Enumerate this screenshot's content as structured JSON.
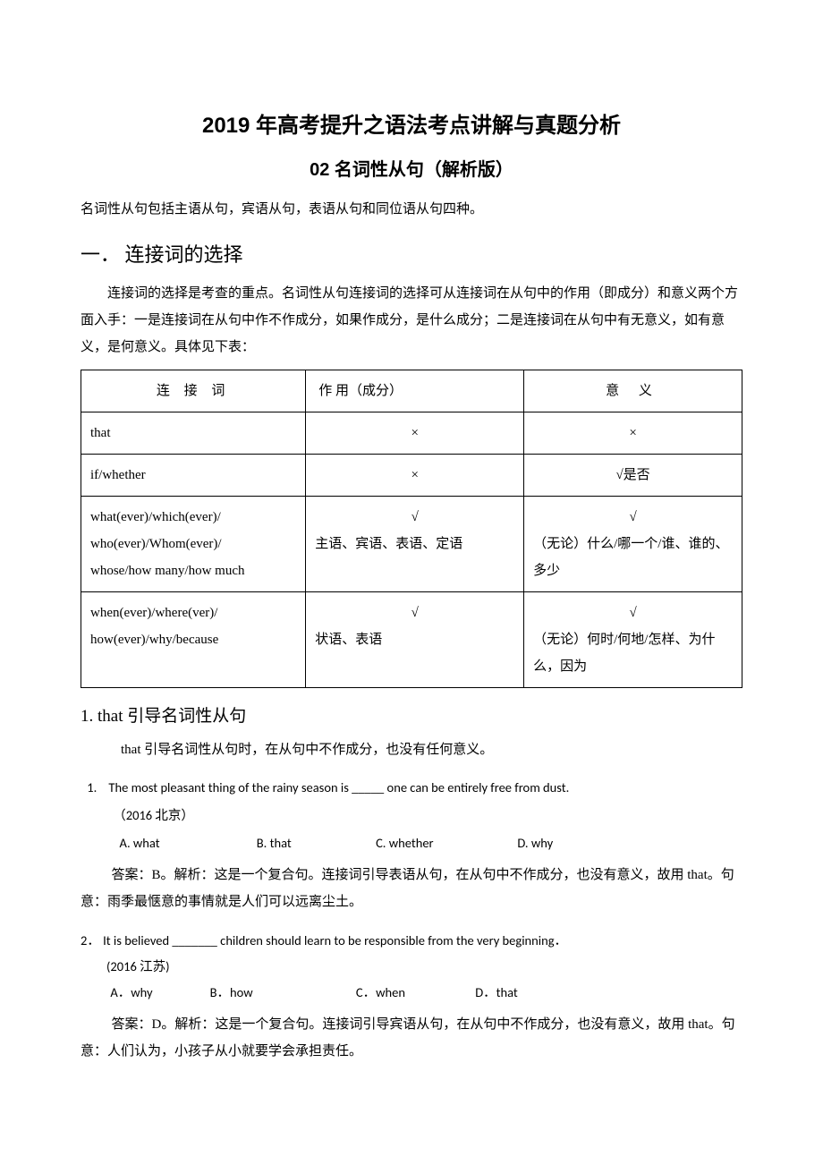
{
  "title_main": "2019 年高考提升之语法考点讲解与真题分析",
  "title_sub": "02 名词性从句（解析版）",
  "intro": "名词性从句包括主语从句，宾语从句，表语从句和同位语从句四种。",
  "section1": {
    "heading": "一．  连接词的选择",
    "para": "连接词的选择是考查的重点。名词性从句连接词的选择可从连接词在从句中的作用（即成分）和意义两个方面入手：一是连接词在从句中作不作成分，如果作成分，是什么成分；二是连接词在从句中有无意义，如有意义，是何意义。具体见下表："
  },
  "table": {
    "header": {
      "c1": "连 接 词",
      "c2": "作 用（成分）",
      "c3": "意  义"
    },
    "rows": [
      {
        "c1": "that",
        "c2": "×",
        "c3": "×",
        "c3_center": true
      },
      {
        "c1": "if/whether",
        "c2": "×",
        "c3": "√是否",
        "c3_center": true
      },
      {
        "c1": "what(ever)/which(ever)/\nwho(ever)/Whom(ever)/\nwhose/how many/how much",
        "c2": "√\n主语、宾语、表语、定语",
        "c3": "√\n（无论）什么/哪一个/谁、谁的、多少",
        "c3_center": false,
        "c3_firstcenter": true
      },
      {
        "c1": "when(ever)/where(ver)/\nhow(ever)/why/because",
        "c2": "√\n状语、表语",
        "c3": "√\n（无论）何时/何地/怎样、为什么，因为",
        "c3_center": false,
        "c3_firstcenter": true
      }
    ]
  },
  "subsection1": {
    "heading": "1. that 引导名词性从句",
    "para": "that 引导名词性从句时，在从句中不作成分，也没有任何意义。"
  },
  "q1": {
    "num": "1.",
    "text": "The most pleasant thing of the rainy season is _____ one can be entirely free from dust.",
    "source": "（2016 北京）",
    "choices": {
      "a": "A. what",
      "b": "B. that",
      "c": "C. whether",
      "d": "D. why"
    },
    "choice_widths": {
      "a": "150px",
      "b": "130px",
      "c": "155px",
      "d": "100px"
    },
    "answer": "答案：B。解析：这是一个复合句。连接词引导表语从句，在从句中不作成分，也没有意义，故用 that。句意：雨季最惬意的事情就是人们可以远离尘土。"
  },
  "q2": {
    "num": "2．",
    "text": "It is believed _______ children should learn to be responsible from the very beginning．",
    "source": "(2016 江苏)",
    "choices": {
      "a": "A．why",
      "b": "B．how",
      "c": "C．when",
      "d": "D．that"
    },
    "choice_widths": {
      "a": "108px",
      "b": "160px",
      "c": "130px",
      "d": "100px"
    },
    "answer": "答案：D。解析：这是一个复合句。连接词引导宾语从句，在从句中不作成分，也没有意义，故用 that。句意：人们认为，小孩子从小就要学会承担责任。"
  }
}
